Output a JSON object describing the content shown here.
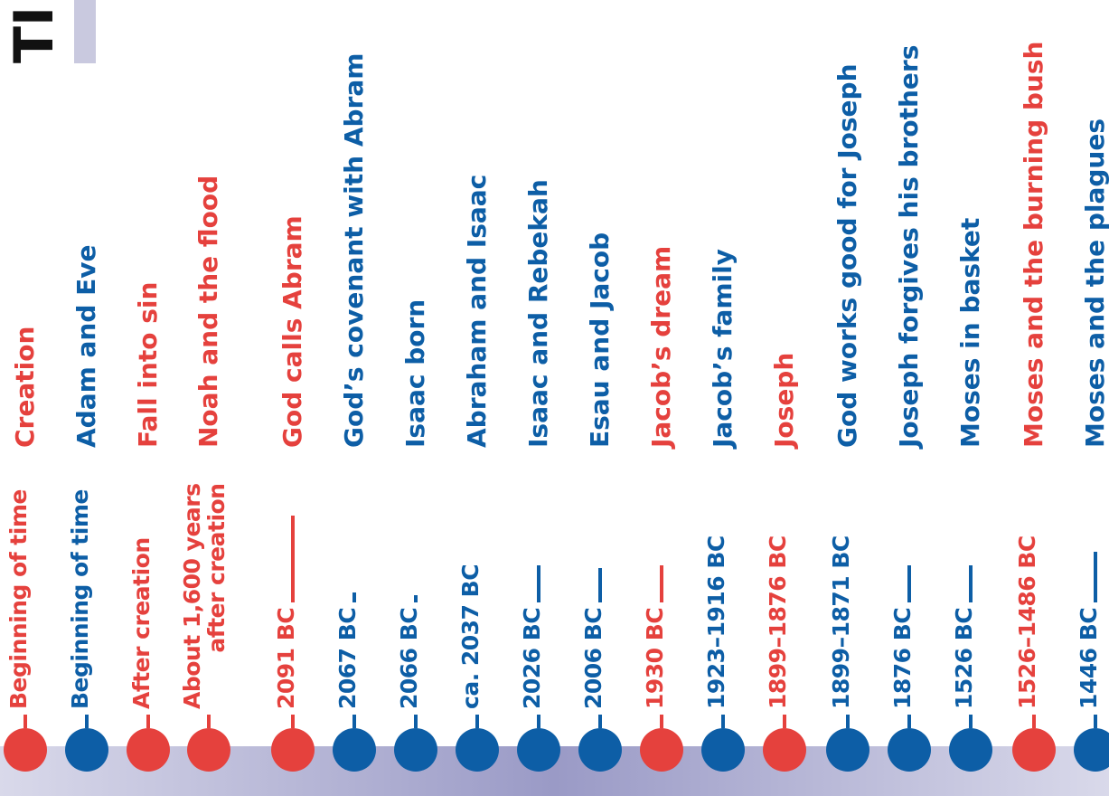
{
  "title": "TI",
  "colors": {
    "red": "#e5413d",
    "blue": "#0d5ea6"
  },
  "entries": [
    {
      "date": "Beginning of time",
      "event": "Creation",
      "color": "red"
    },
    {
      "date": "Beginning of time",
      "event": "Adam and Eve",
      "color": "blue"
    },
    {
      "date": "After creation",
      "event": "Fall into sin",
      "color": "red"
    },
    {
      "date": "About 1,600 years after creation",
      "date_line1": "About 1,600 years",
      "date_line2": "after creation",
      "event": "Noah and the flood",
      "color": "red"
    },
    {
      "date": "2091 BC",
      "event": "God calls Abram",
      "color": "red"
    },
    {
      "date": "2067 BC",
      "event": "God’s covenant with Abram",
      "color": "blue"
    },
    {
      "date": "2066 BC",
      "event": "Isaac born",
      "color": "blue"
    },
    {
      "date": "ca. 2037 BC",
      "event": "Abraham and Isaac",
      "color": "blue"
    },
    {
      "date": "2026 BC",
      "event": "Isaac and Rebekah",
      "color": "blue"
    },
    {
      "date": "2006 BC",
      "event": "Esau and Jacob",
      "color": "blue"
    },
    {
      "date": "1930 BC",
      "event": "Jacob’s dream",
      "color": "red"
    },
    {
      "date": "1923–1916 BC",
      "event": "Jacob’s family",
      "color": "blue"
    },
    {
      "date": "1899–1876 BC",
      "event": "Joseph",
      "color": "red"
    },
    {
      "date": "1899–1871 BC",
      "event": "God works good for Joseph",
      "color": "blue"
    },
    {
      "date": "1876 BC",
      "event": "Joseph forgives his brothers",
      "color": "blue"
    },
    {
      "date": "1526 BC",
      "event": "Moses in basket",
      "color": "blue"
    },
    {
      "date": "1526–1486 BC",
      "event": "Moses and the burning bush",
      "color": "red"
    },
    {
      "date": "1446 BC",
      "event": "Moses and the plagues",
      "color": "blue"
    }
  ]
}
